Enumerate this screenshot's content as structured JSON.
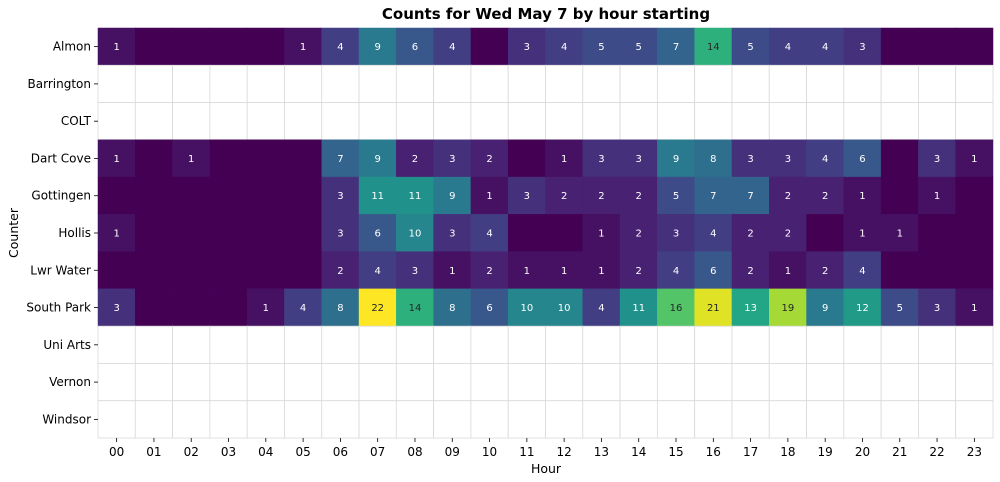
{
  "chart_data": {
    "type": "heatmap",
    "title": "Counts for Wed May 7 by hour starting",
    "xlabel": "Hour",
    "ylabel": "Counter",
    "colormap": "viridis",
    "color_range": [
      0,
      22
    ],
    "empty_cell_color": "#ffffff",
    "grid_color": "#d9d9d9",
    "x": [
      "00",
      "01",
      "02",
      "03",
      "04",
      "05",
      "06",
      "07",
      "08",
      "09",
      "10",
      "11",
      "12",
      "13",
      "14",
      "15",
      "16",
      "17",
      "18",
      "19",
      "20",
      "21",
      "22",
      "23"
    ],
    "y": [
      "Almon",
      "Barrington",
      "COLT",
      "Dart Cove",
      "Gottingen",
      "Hollis",
      "Lwr Water",
      "South Park",
      "Uni Arts",
      "Vernon",
      "Windsor"
    ],
    "values": [
      [
        1,
        0,
        0,
        0,
        0,
        1,
        4,
        9,
        6,
        4,
        0,
        3,
        4,
        5,
        5,
        7,
        14,
        5,
        4,
        4,
        3,
        0,
        0,
        0
      ],
      [
        null,
        null,
        null,
        null,
        null,
        null,
        null,
        null,
        null,
        null,
        null,
        null,
        null,
        null,
        null,
        null,
        null,
        null,
        null,
        null,
        null,
        null,
        null,
        null
      ],
      [
        null,
        null,
        null,
        null,
        null,
        null,
        null,
        null,
        null,
        null,
        null,
        null,
        null,
        null,
        null,
        null,
        null,
        null,
        null,
        null,
        null,
        null,
        null,
        null
      ],
      [
        1,
        0,
        1,
        0,
        0,
        0,
        7,
        9,
        2,
        3,
        2,
        0,
        1,
        3,
        3,
        9,
        8,
        3,
        3,
        4,
        6,
        0,
        3,
        1
      ],
      [
        0,
        0,
        0,
        0,
        0,
        0,
        3,
        11,
        11,
        9,
        1,
        3,
        2,
        2,
        2,
        5,
        7,
        7,
        2,
        2,
        1,
        0,
        1,
        0
      ],
      [
        1,
        0,
        0,
        0,
        0,
        0,
        3,
        6,
        10,
        3,
        4,
        0,
        0,
        1,
        2,
        3,
        4,
        2,
        2,
        0,
        1,
        1,
        0,
        0
      ],
      [
        0,
        0,
        0,
        0,
        0,
        0,
        2,
        4,
        3,
        1,
        2,
        1,
        1,
        1,
        2,
        4,
        6,
        2,
        1,
        2,
        4,
        0,
        0,
        0
      ],
      [
        3,
        0,
        0,
        0,
        1,
        4,
        8,
        22,
        14,
        8,
        6,
        10,
        10,
        4,
        11,
        16,
        21,
        13,
        19,
        9,
        12,
        5,
        3,
        1
      ],
      [
        null,
        null,
        null,
        null,
        null,
        null,
        null,
        null,
        null,
        null,
        null,
        null,
        null,
        null,
        null,
        null,
        null,
        null,
        null,
        null,
        null,
        null,
        null,
        null
      ],
      [
        null,
        null,
        null,
        null,
        null,
        null,
        null,
        null,
        null,
        null,
        null,
        null,
        null,
        null,
        null,
        null,
        null,
        null,
        null,
        null,
        null,
        null,
        null,
        null
      ],
      [
        null,
        null,
        null,
        null,
        null,
        null,
        null,
        null,
        null,
        null,
        null,
        null,
        null,
        null,
        null,
        null,
        null,
        null,
        null,
        null,
        null,
        null,
        null,
        null
      ]
    ]
  }
}
